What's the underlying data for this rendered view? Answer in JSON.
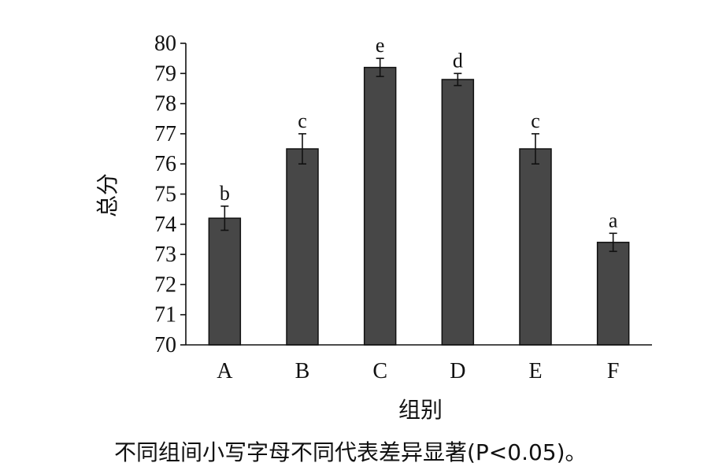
{
  "chart_data": {
    "type": "bar",
    "categories": [
      "A",
      "B",
      "C",
      "D",
      "E",
      "F"
    ],
    "values": [
      74.2,
      76.5,
      79.2,
      78.8,
      76.5,
      73.4
    ],
    "error": [
      0.4,
      0.5,
      0.3,
      0.2,
      0.5,
      0.3
    ],
    "significance_letters": [
      "b",
      "c",
      "e",
      "d",
      "c",
      "a"
    ],
    "xlabel": "组别",
    "ylabel": "总分",
    "ylim": [
      70,
      80
    ],
    "yticks": [
      70,
      71,
      72,
      73,
      74,
      75,
      76,
      77,
      78,
      79,
      80
    ],
    "grid": false,
    "legend": "none",
    "bar_color": "#474747",
    "caption": "不同组间小写字母不同代表差异显著(P<0.05)。"
  }
}
